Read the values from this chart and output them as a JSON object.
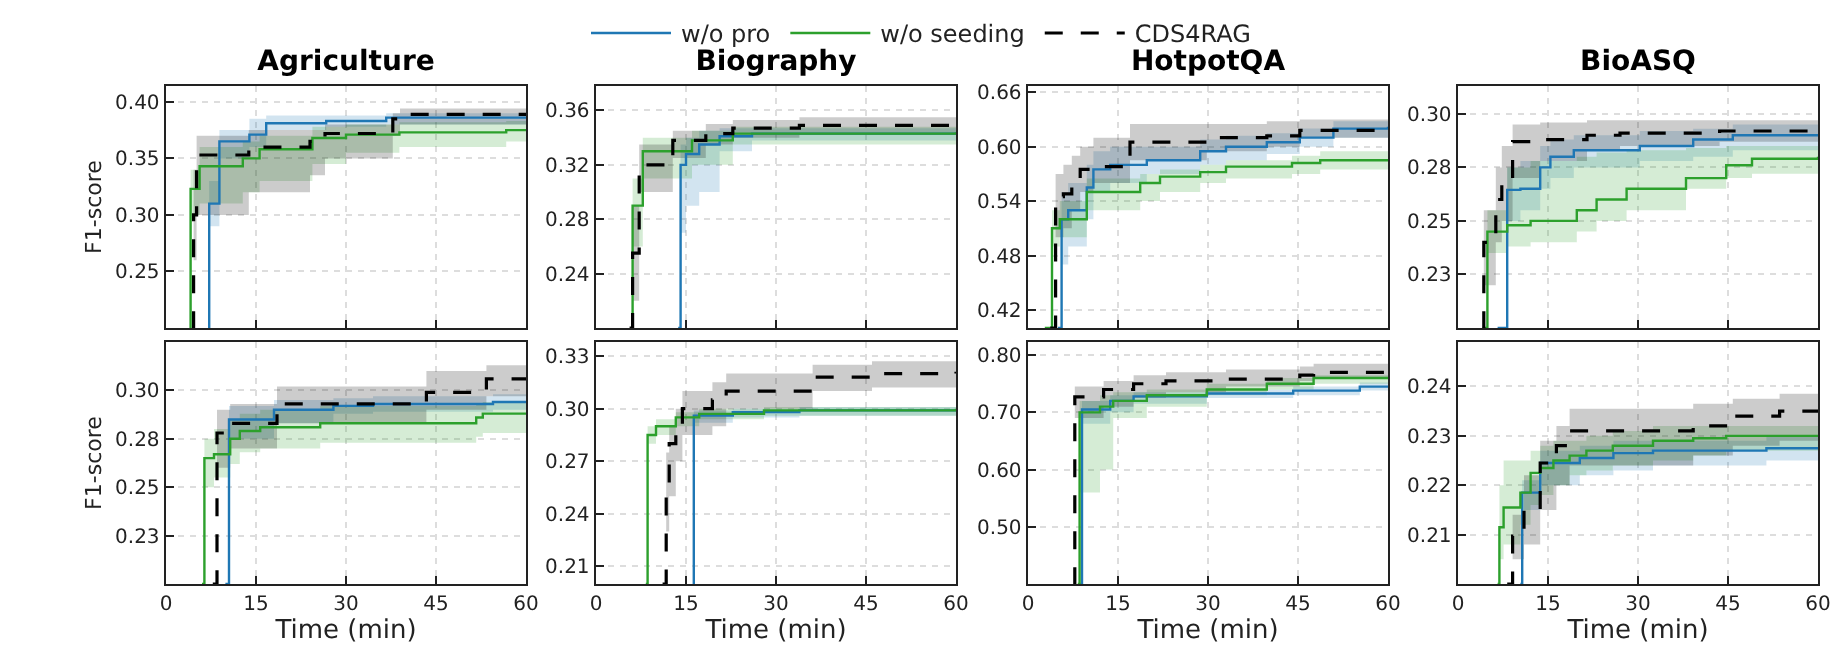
{
  "chart_data": [
    {
      "type": "step",
      "title": "Agriculture",
      "ylabel": "F1-score",
      "xlim": [
        0,
        60
      ],
      "xticks": [
        0,
        15,
        30,
        45,
        60
      ],
      "ylim": [
        0.2,
        0.414
      ],
      "yticks": [
        {
          "value": 0.25,
          "label": "0.25"
        },
        {
          "value": 0.3,
          "label": "0.30"
        },
        {
          "value": 0.35,
          "label": "0.35"
        },
        {
          "value": 0.4,
          "label": "0.40"
        }
      ],
      "grid": true,
      "legend": "top",
      "tick_labels": "y",
      "series": [
        {
          "name": "w/o pro",
          "color": "#1f77b4",
          "x": [
            7,
            7.2,
            8.9,
            13.9,
            16.7,
            26.7,
            36.7,
            60
          ],
          "values": [
            0.2,
            0.31,
            0.365,
            0.371,
            0.381,
            0.383,
            0.386,
            0.387
          ],
          "lower": [
            0.2,
            0.29,
            0.35,
            0.36,
            0.375,
            0.378,
            0.38,
            0.382
          ],
          "upper": [
            0.2,
            0.33,
            0.375,
            0.385,
            0.388,
            0.388,
            0.39,
            0.39
          ]
        },
        {
          "name": "w/o seeding",
          "color": "#2ca02c",
          "x": [
            3.9,
            4.1,
            5.6,
            12.8,
            15.6,
            24.4,
            30,
            38.9,
            56.7,
            60
          ],
          "values": [
            0.2,
            0.323,
            0.343,
            0.35,
            0.358,
            0.368,
            0.371,
            0.373,
            0.375,
            0.375
          ],
          "lower": [
            0.2,
            0.3,
            0.31,
            0.32,
            0.33,
            0.345,
            0.355,
            0.36,
            0.365,
            0.365
          ],
          "upper": [
            0.2,
            0.34,
            0.36,
            0.365,
            0.37,
            0.378,
            0.38,
            0.382,
            0.383,
            0.383
          ]
        },
        {
          "name": "CDS4RAG",
          "color": "#000000",
          "line_style": "dashed",
          "x": [
            4.4,
            4.6,
            5.1,
            13.8,
            24,
            26.5,
            37.8,
            39,
            60
          ],
          "values": [
            0.2,
            0.3,
            0.353,
            0.36,
            0.365,
            0.372,
            0.385,
            0.389,
            0.389
          ],
          "lower": [
            0.2,
            0.26,
            0.3,
            0.32,
            0.335,
            0.35,
            0.37,
            0.38,
            0.38
          ],
          "upper": [
            0.2,
            0.34,
            0.37,
            0.375,
            0.375,
            0.38,
            0.39,
            0.394,
            0.394
          ]
        }
      ]
    },
    {
      "type": "step",
      "title": "Biography",
      "xlim": [
        0,
        60
      ],
      "xticks": [
        0,
        15,
        30,
        45,
        60
      ],
      "ylim": [
        0.2,
        0.378
      ],
      "yticks": [
        {
          "value": 0.24,
          "label": "0.24"
        },
        {
          "value": 0.28,
          "label": "0.28"
        },
        {
          "value": 0.32,
          "label": "0.32"
        },
        {
          "value": 0.36,
          "label": "0.36"
        }
      ],
      "grid": true,
      "tick_labels": "y",
      "series": [
        {
          "color": "#1f77b4",
          "x": [
            13.7,
            14.1,
            15,
            17.2,
            20.6,
            26,
            60
          ],
          "values": [
            0.2,
            0.32,
            0.328,
            0.335,
            0.341,
            0.343,
            0.344
          ],
          "lower": [
            0.2,
            0.27,
            0.29,
            0.3,
            0.33,
            0.338,
            0.34
          ],
          "upper": [
            0.2,
            0.335,
            0.34,
            0.345,
            0.347,
            0.347,
            0.347
          ]
        },
        {
          "color": "#2ca02c",
          "x": [
            5.9,
            6.1,
            7.8,
            16,
            22.8,
            60
          ],
          "values": [
            0.2,
            0.29,
            0.33,
            0.338,
            0.343,
            0.344
          ],
          "lower": [
            0.2,
            0.26,
            0.31,
            0.32,
            0.335,
            0.34
          ],
          "upper": [
            0.2,
            0.31,
            0.34,
            0.345,
            0.348,
            0.348
          ]
        },
        {
          "color": "#000000",
          "line_style": "dashed",
          "x": [
            5.6,
            6.1,
            7.2,
            12.8,
            18.3,
            22.8,
            33.9,
            60
          ],
          "values": [
            0.2,
            0.255,
            0.32,
            0.338,
            0.343,
            0.347,
            0.349,
            0.35
          ],
          "lower": [
            0.2,
            0.22,
            0.3,
            0.325,
            0.335,
            0.34,
            0.342,
            0.344
          ],
          "upper": [
            0.2,
            0.29,
            0.335,
            0.345,
            0.35,
            0.353,
            0.355,
            0.355
          ]
        }
      ]
    },
    {
      "type": "step",
      "title": "HotpotQA",
      "xlim": [
        0,
        60
      ],
      "xticks": [
        0,
        15,
        30,
        45,
        60
      ],
      "ylim": [
        0.4,
        0.667
      ],
      "yticks": [
        {
          "value": 0.42,
          "label": "0.42"
        },
        {
          "value": 0.48,
          "label": "0.48"
        },
        {
          "value": 0.54,
          "label": "0.54"
        },
        {
          "value": 0.6,
          "label": "0.60"
        },
        {
          "value": 0.66,
          "label": "0.66"
        }
      ],
      "grid": true,
      "tick_labels": "y",
      "series": [
        {
          "color": "#1f77b4",
          "x": [
            5,
            5.6,
            6.7,
            9.8,
            10.9,
            13.7,
            19.8,
            28.7,
            33,
            39.8,
            45.3,
            50.9,
            60
          ],
          "values": [
            0.4,
            0.52,
            0.53,
            0.555,
            0.575,
            0.58,
            0.585,
            0.595,
            0.6,
            0.605,
            0.61,
            0.62,
            0.622
          ],
          "lower": [
            0.4,
            0.47,
            0.49,
            0.52,
            0.55,
            0.56,
            0.57,
            0.58,
            0.585,
            0.592,
            0.6,
            0.61,
            0.612
          ],
          "upper": [
            0.4,
            0.55,
            0.56,
            0.58,
            0.595,
            0.6,
            0.6,
            0.608,
            0.612,
            0.615,
            0.62,
            0.628,
            0.63
          ]
        },
        {
          "color": "#2ca02c",
          "x": [
            2.8,
            4,
            5.3,
            9.8,
            18.7,
            22,
            28.7,
            33,
            44,
            48.7,
            60
          ],
          "values": [
            0.4,
            0.51,
            0.52,
            0.55,
            0.56,
            0.567,
            0.572,
            0.578,
            0.582,
            0.585,
            0.586
          ],
          "lower": [
            0.4,
            0.49,
            0.5,
            0.53,
            0.54,
            0.55,
            0.56,
            0.565,
            0.57,
            0.575,
            0.576
          ],
          "upper": [
            0.4,
            0.53,
            0.54,
            0.565,
            0.57,
            0.575,
            0.58,
            0.585,
            0.59,
            0.595,
            0.6
          ]
        },
        {
          "color": "#000000",
          "line_style": "dashed",
          "x": [
            3.7,
            4.6,
            5.9,
            7.3,
            8.7,
            10.9,
            17,
            29.8,
            39.8,
            45.3,
            60
          ],
          "values": [
            0.4,
            0.545,
            0.548,
            0.565,
            0.575,
            0.578,
            0.605,
            0.61,
            0.612,
            0.618,
            0.618
          ],
          "lower": [
            0.4,
            0.5,
            0.51,
            0.53,
            0.55,
            0.56,
            0.585,
            0.595,
            0.6,
            0.61,
            0.61
          ],
          "upper": [
            0.4,
            0.57,
            0.58,
            0.59,
            0.6,
            0.61,
            0.625,
            0.625,
            0.628,
            0.63,
            0.63
          ]
        }
      ]
    },
    {
      "type": "step",
      "title": "BioASQ",
      "xlim": [
        0,
        60
      ],
      "xticks": [
        0,
        15,
        30,
        45,
        60
      ],
      "ylim": [
        0.2,
        0.313
      ],
      "yticks": [
        {
          "value": 0.225,
          "label": "0.23"
        },
        {
          "value": 0.25,
          "label": "0.25"
        },
        {
          "value": 0.275,
          "label": "0.28"
        },
        {
          "value": 0.3,
          "label": "0.30"
        }
      ],
      "grid": true,
      "tick_labels": "y",
      "series": [
        {
          "color": "#1f77b4",
          "x": [
            6.6,
            8.2,
            10.4,
            13.7,
            15.4,
            19.3,
            30.3,
            39.2,
            45.8,
            60
          ],
          "values": [
            0.2,
            0.2645,
            0.265,
            0.275,
            0.28,
            0.283,
            0.285,
            0.288,
            0.29,
            0.29
          ],
          "lower": [
            0.2,
            0.25,
            0.255,
            0.265,
            0.27,
            0.275,
            0.278,
            0.28,
            0.283,
            0.283
          ],
          "upper": [
            0.2,
            0.275,
            0.278,
            0.285,
            0.288,
            0.29,
            0.292,
            0.293,
            0.295,
            0.295
          ]
        },
        {
          "color": "#2ca02c",
          "x": [
            4.1,
            4.9,
            8.2,
            12.1,
            19.8,
            23.1,
            28.1,
            38,
            44.7,
            49,
            60
          ],
          "values": [
            0.2,
            0.245,
            0.248,
            0.25,
            0.255,
            0.26,
            0.265,
            0.27,
            0.276,
            0.279,
            0.28
          ],
          "lower": [
            0.2,
            0.235,
            0.238,
            0.24,
            0.245,
            0.25,
            0.255,
            0.265,
            0.27,
            0.272,
            0.273
          ],
          "upper": [
            0.2,
            0.255,
            0.275,
            0.278,
            0.28,
            0.282,
            0.283,
            0.284,
            0.285,
            0.285,
            0.285
          ]
        },
        {
          "color": "#000000",
          "line_style": "dashed",
          "x": [
            4.1,
            4.3,
            6.3,
            7.3,
            9.1,
            13.7,
            21.5,
            27,
            43.6,
            60
          ],
          "values": [
            0.2,
            0.24,
            0.26,
            0.27,
            0.287,
            0.288,
            0.29,
            0.291,
            0.292,
            0.293
          ],
          "lower": [
            0.2,
            0.22,
            0.24,
            0.25,
            0.27,
            0.278,
            0.283,
            0.285,
            0.287,
            0.288
          ],
          "upper": [
            0.2,
            0.255,
            0.275,
            0.285,
            0.295,
            0.296,
            0.297,
            0.297,
            0.297,
            0.298
          ]
        }
      ]
    },
    {
      "type": "step",
      "ylabel": "F1-score",
      "xlabel": "Time (min)",
      "xlim": [
        0,
        60
      ],
      "xticks": [
        0,
        15,
        30,
        45,
        60
      ],
      "ylim": [
        0.2,
        0.325
      ],
      "yticks": [
        {
          "value": 0.225,
          "label": "0.23"
        },
        {
          "value": 0.25,
          "label": "0.25"
        },
        {
          "value": 0.275,
          "label": "0.28"
        },
        {
          "value": 0.3,
          "label": "0.30"
        }
      ],
      "grid": true,
      "series": [
        {
          "color": "#1f77b4",
          "x": [
            9.9,
            10.5,
            18,
            27.9,
            34.5,
            54.5,
            60
          ],
          "values": [
            0.2,
            0.285,
            0.29,
            0.292,
            0.293,
            0.294,
            0.294
          ],
          "lower": [
            0.2,
            0.275,
            0.283,
            0.288,
            0.289,
            0.29,
            0.29
          ],
          "upper": [
            0.2,
            0.292,
            0.295,
            0.296,
            0.297,
            0.298,
            0.298
          ]
        },
        {
          "color": "#2ca02c",
          "x": [
            6,
            6.4,
            8,
            10.7,
            12.3,
            15.7,
            25.7,
            51.7,
            52.8,
            60
          ],
          "values": [
            0.2,
            0.265,
            0.267,
            0.275,
            0.279,
            0.281,
            0.283,
            0.286,
            0.288,
            0.288
          ],
          "lower": [
            0.2,
            0.25,
            0.255,
            0.262,
            0.268,
            0.27,
            0.273,
            0.276,
            0.278,
            0.278
          ],
          "upper": [
            0.2,
            0.275,
            0.28,
            0.285,
            0.288,
            0.29,
            0.292,
            0.293,
            0.294,
            0.294
          ]
        },
        {
          "color": "#000000",
          "line_style": "dashed",
          "x": [
            7.8,
            8.5,
            10.7,
            18.5,
            43.4,
            53.4,
            60
          ],
          "values": [
            0.2,
            0.278,
            0.283,
            0.293,
            0.299,
            0.306,
            0.306
          ],
          "lower": [
            0.2,
            0.26,
            0.27,
            0.283,
            0.29,
            0.297,
            0.297
          ],
          "upper": [
            0.2,
            0.29,
            0.293,
            0.302,
            0.31,
            0.313,
            0.313
          ]
        }
      ]
    },
    {
      "type": "step",
      "xlabel": "Time (min)",
      "xlim": [
        0,
        60
      ],
      "xticks": [
        0,
        15,
        30,
        45,
        60
      ],
      "ylim": [
        0.2,
        0.338
      ],
      "yticks": [
        {
          "value": 0.21,
          "label": "0.21"
        },
        {
          "value": 0.24,
          "label": "0.24"
        },
        {
          "value": 0.27,
          "label": "0.27"
        },
        {
          "value": 0.3,
          "label": "0.30"
        },
        {
          "value": 0.33,
          "label": "0.33"
        }
      ],
      "grid": true,
      "series": [
        {
          "color": "#1f77b4",
          "x": [
            16.1,
            16.3,
            22.8,
            33.9,
            60
          ],
          "values": [
            0.2,
            0.296,
            0.298,
            0.299,
            0.299
          ],
          "lower": [
            0.2,
            0.292,
            0.295,
            0.296,
            0.296
          ],
          "upper": [
            0.2,
            0.299,
            0.3,
            0.301,
            0.301
          ]
        },
        {
          "color": "#2ca02c",
          "x": [
            8.3,
            8.6,
            10,
            13.3,
            17.2,
            28,
            60
          ],
          "values": [
            0.2,
            0.285,
            0.29,
            0.295,
            0.297,
            0.299,
            0.3
          ],
          "lower": [
            0.2,
            0.28,
            0.285,
            0.29,
            0.294,
            0.296,
            0.297
          ],
          "upper": [
            0.2,
            0.29,
            0.294,
            0.298,
            0.3,
            0.301,
            0.302
          ]
        },
        {
          "color": "#000000",
          "line_style": "dashed",
          "x": [
            11.1,
            11.7,
            12.2,
            13.3,
            14.4,
            19.4,
            21.7,
            36.1,
            46,
            60
          ],
          "values": [
            0.2,
            0.255,
            0.28,
            0.29,
            0.3,
            0.305,
            0.31,
            0.318,
            0.32,
            0.321
          ],
          "lower": [
            0.2,
            0.23,
            0.25,
            0.27,
            0.285,
            0.29,
            0.3,
            0.31,
            0.312,
            0.313
          ],
          "upper": [
            0.2,
            0.275,
            0.29,
            0.3,
            0.31,
            0.315,
            0.32,
            0.325,
            0.327,
            0.328
          ]
        }
      ]
    },
    {
      "type": "step",
      "xlabel": "Time (min)",
      "xlim": [
        0,
        60
      ],
      "xticks": [
        0,
        15,
        30,
        45,
        60
      ],
      "ylim": [
        0.4,
        0.823
      ],
      "yticks": [
        {
          "value": 0.5,
          "label": "0.50"
        },
        {
          "value": 0.6,
          "label": "0.60"
        },
        {
          "value": 0.7,
          "label": "0.70"
        },
        {
          "value": 0.8,
          "label": "0.80"
        }
      ],
      "grid": true,
      "series": [
        {
          "color": "#1f77b4",
          "x": [
            8.7,
            9,
            13.7,
            17.6,
            29.8,
            44.2,
            55.3,
            60
          ],
          "values": [
            0.4,
            0.705,
            0.72,
            0.728,
            0.733,
            0.738,
            0.745,
            0.745
          ],
          "lower": [
            0.4,
            0.68,
            0.7,
            0.715,
            0.725,
            0.73,
            0.738,
            0.738
          ],
          "upper": [
            0.4,
            0.72,
            0.73,
            0.735,
            0.74,
            0.745,
            0.752,
            0.752
          ]
        },
        {
          "color": "#2ca02c",
          "x": [
            8.3,
            8.6,
            12,
            14.2,
            19.8,
            29.8,
            39.8,
            47.6,
            60
          ],
          "values": [
            0.4,
            0.7,
            0.71,
            0.72,
            0.73,
            0.74,
            0.75,
            0.76,
            0.76
          ],
          "lower": [
            0.4,
            0.56,
            0.6,
            0.69,
            0.71,
            0.73,
            0.74,
            0.75,
            0.75
          ],
          "upper": [
            0.4,
            0.72,
            0.73,
            0.735,
            0.74,
            0.75,
            0.76,
            0.765,
            0.765
          ]
        },
        {
          "color": "#000000",
          "line_style": "dashed",
          "x": [
            7.6,
            7.8,
            12.6,
            17.6,
            23,
            33,
            45.3,
            47.6,
            60
          ],
          "values": [
            0.4,
            0.727,
            0.74,
            0.75,
            0.755,
            0.758,
            0.765,
            0.77,
            0.772
          ],
          "lower": [
            0.4,
            0.69,
            0.71,
            0.725,
            0.735,
            0.745,
            0.755,
            0.76,
            0.762
          ],
          "upper": [
            0.4,
            0.745,
            0.755,
            0.765,
            0.77,
            0.775,
            0.78,
            0.785,
            0.785
          ]
        }
      ]
    },
    {
      "type": "step",
      "xlabel": "Time (min)",
      "xlim": [
        0,
        60
      ],
      "xticks": [
        0,
        15,
        30,
        45,
        60
      ],
      "ylim": [
        0.2,
        0.249
      ],
      "yticks": [
        {
          "value": 0.21,
          "label": "0.21"
        },
        {
          "value": 0.22,
          "label": "0.22"
        },
        {
          "value": 0.23,
          "label": "0.23"
        },
        {
          "value": 0.24,
          "label": "0.24"
        }
      ],
      "grid": true,
      "series": [
        {
          "color": "#1f77b4",
          "x": [
            10.4,
            10.7,
            13.7,
            20.3,
            25.9,
            32.5,
            51.4,
            60
          ],
          "values": [
            0.2,
            0.2185,
            0.2245,
            0.2255,
            0.2265,
            0.227,
            0.2275,
            0.2275
          ],
          "lower": [
            0.2,
            0.215,
            0.22,
            0.222,
            0.223,
            0.224,
            0.225,
            0.225
          ],
          "upper": [
            0.2,
            0.221,
            0.227,
            0.228,
            0.229,
            0.229,
            0.23,
            0.23
          ]
        },
        {
          "color": "#2ca02c",
          "x": [
            6.6,
            6.9,
            7.6,
            10.4,
            12.1,
            13.7,
            15.9,
            18.6,
            21.4,
            25.8,
            32.5,
            39.2,
            44.7,
            60
          ],
          "values": [
            0.2,
            0.2115,
            0.2155,
            0.2185,
            0.2225,
            0.2235,
            0.225,
            0.226,
            0.227,
            0.228,
            0.229,
            0.2295,
            0.23,
            0.23
          ],
          "lower": [
            0.2,
            0.205,
            0.208,
            0.212,
            0.216,
            0.218,
            0.22,
            0.222,
            0.223,
            0.224,
            0.225,
            0.226,
            0.227,
            0.227
          ],
          "upper": [
            0.2,
            0.22,
            0.225,
            0.225,
            0.227,
            0.228,
            0.229,
            0.229,
            0.23,
            0.231,
            0.232,
            0.232,
            0.232,
            0.232
          ]
        },
        {
          "color": "#000000",
          "line_style": "dashed",
          "x": [
            8.2,
            9.1,
            11,
            13.7,
            16.4,
            18.6,
            39.2,
            45.8,
            53.6,
            60
          ],
          "values": [
            0.2,
            0.2097,
            0.215,
            0.2245,
            0.228,
            0.231,
            0.232,
            0.234,
            0.235,
            0.235
          ],
          "lower": [
            0.2,
            0.205,
            0.208,
            0.215,
            0.22,
            0.224,
            0.226,
            0.228,
            0.229,
            0.229
          ],
          "upper": [
            0.2,
            0.214,
            0.222,
            0.229,
            0.232,
            0.2355,
            0.2365,
            0.2375,
            0.2385,
            0.2385
          ]
        }
      ]
    }
  ]
}
